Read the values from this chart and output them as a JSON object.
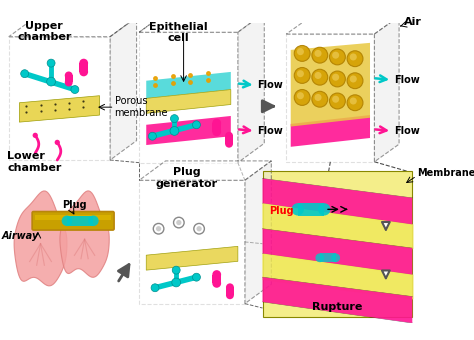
{
  "bg_color": "#ffffff",
  "cyan": "#00C8C8",
  "magenta": "#FF1493",
  "yellow": "#E8D44D",
  "gold": "#C8A000",
  "pink_light": "#F4A0A0",
  "pink_dark": "#E08080",
  "gold_dark": "#B8860B",
  "cell_color": "#E8C040",
  "labels": {
    "upper_chamber": "Upper\nchamber",
    "lower_chamber": "Lower\nchamber",
    "porous_membrane": "Porous\nmembrane",
    "epithelial_cell": "Epithelial\ncell",
    "flow": "Flow",
    "air": "Air",
    "membrane": "Membrane",
    "plug": "Plug",
    "plug_generator": "Plug\ngenerator",
    "airway": "Airway",
    "rupture": "Rupture"
  },
  "label_fontsize": 7,
  "bold_fontsize": 8
}
